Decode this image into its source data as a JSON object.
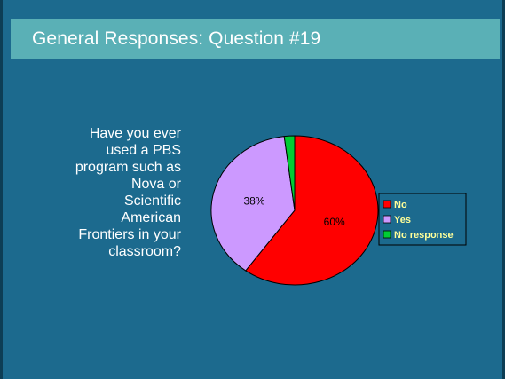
{
  "slide": {
    "title": "General Responses: Question #19",
    "question": "Have you ever\nused a PBS\nprogram such as\nNova or\nScientific\nAmerican\nFrontiers in your\nclassroom?"
  },
  "chart_data": {
    "type": "pie",
    "title": "",
    "legend_position": "right",
    "slices": [
      {
        "name": "No",
        "value": 60,
        "label": "60%",
        "color": "#ff0000"
      },
      {
        "name": "Yes",
        "value": 38,
        "label": "38%",
        "color": "#cc99ff"
      },
      {
        "name": "No response",
        "value": 2,
        "label": "",
        "color": "#00cc33"
      }
    ]
  }
}
